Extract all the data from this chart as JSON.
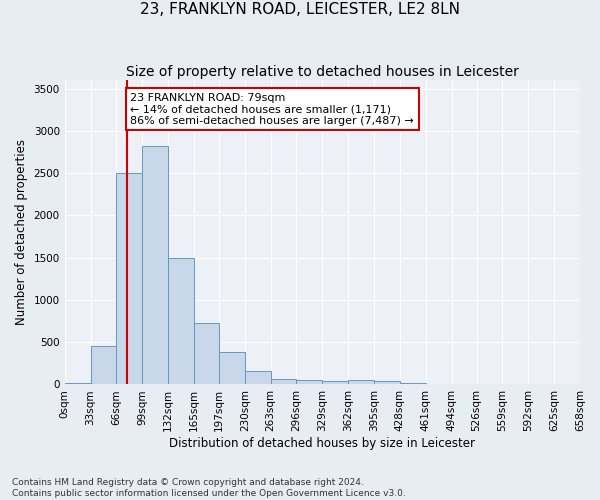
{
  "title": "23, FRANKLYN ROAD, LEICESTER, LE2 8LN",
  "subtitle": "Size of property relative to detached houses in Leicester",
  "xlabel": "Distribution of detached houses by size in Leicester",
  "ylabel": "Number of detached properties",
  "footer_line1": "Contains HM Land Registry data © Crown copyright and database right 2024.",
  "footer_line2": "Contains public sector information licensed under the Open Government Licence v3.0.",
  "bar_edges": [
    0,
    33,
    66,
    99,
    132,
    165,
    197,
    230,
    263,
    296,
    329,
    362,
    395,
    428,
    461,
    494,
    526,
    559,
    592,
    625,
    658
  ],
  "bar_values": [
    20,
    460,
    2500,
    2820,
    1500,
    730,
    380,
    155,
    70,
    55,
    45,
    55,
    40,
    20,
    0,
    0,
    0,
    0,
    0,
    0
  ],
  "bar_color": "#c8d8ea",
  "bar_edge_color": "#6699bb",
  "property_size": 79,
  "vline_color": "#cc0000",
  "annotation_text": "23 FRANKLYN ROAD: 79sqm\n← 14% of detached houses are smaller (1,171)\n86% of semi-detached houses are larger (7,487) →",
  "annotation_box_color": "#ffffff",
  "annotation_box_edge": "#cc0000",
  "ylim": [
    0,
    3600
  ],
  "yticks": [
    0,
    500,
    1000,
    1500,
    2000,
    2500,
    3000,
    3500
  ],
  "bg_color": "#e8edf3",
  "plot_bg_color": "#edf1f7",
  "grid_color": "#ffffff",
  "title_fontsize": 11,
  "subtitle_fontsize": 10,
  "axis_label_fontsize": 8.5,
  "tick_fontsize": 7.5,
  "footer_fontsize": 6.5
}
